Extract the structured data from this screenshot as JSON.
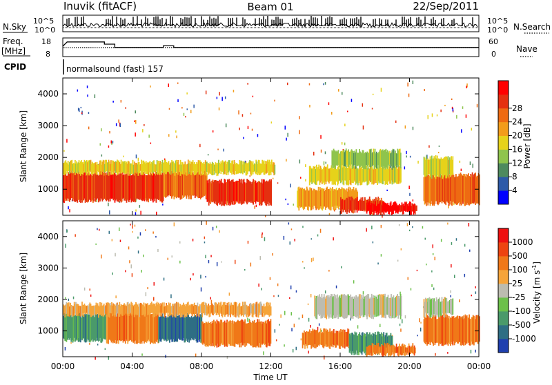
{
  "header": {
    "station": "Inuvik (fitACF)",
    "beam": "Beam 01",
    "date": "22/Sep/2011"
  },
  "noise_panel": {
    "left_label": "N.Sky",
    "right_label": "N.Search",
    "left_ticks": [
      "10^5",
      "10^0"
    ],
    "right_ticks": [
      "10^5",
      "10^0"
    ]
  },
  "freq_panel": {
    "left_label_line1": "Freq.",
    "left_label_line2": "[MHz]",
    "left_ticks": [
      "18",
      "8"
    ],
    "right_ticks": [
      "60",
      "0"
    ],
    "right_label": "Nave",
    "freq_steps": [
      {
        "t": 0.0,
        "f": 13.5
      },
      {
        "t": 0.25,
        "f": 16.6
      },
      {
        "t": 2.4,
        "f": 16.6
      },
      {
        "t": 2.4,
        "f": 15.0
      },
      {
        "t": 3.0,
        "f": 15.0
      },
      {
        "t": 3.0,
        "f": 12.6
      },
      {
        "t": 5.8,
        "f": 12.6
      },
      {
        "t": 5.8,
        "f": 13.8
      },
      {
        "t": 6.4,
        "f": 13.8
      },
      {
        "t": 6.4,
        "f": 12.6
      },
      {
        "t": 24.0,
        "f": 12.6
      }
    ]
  },
  "cpid": {
    "label": "CPID",
    "text": "normalsound (fast) 157"
  },
  "chart_data": [
    {
      "type": "heatmap",
      "name": "power",
      "ylabel": "Slant Range [km]",
      "ylim": [
        180,
        4500
      ],
      "y_ticks": [
        "1000",
        "2000",
        "3000",
        "4000"
      ],
      "xlim": [
        0,
        24
      ],
      "colorbar_label": "Power [dB]",
      "colorbar_ticks": [
        "4",
        "8",
        "12",
        "16",
        "20",
        "24",
        "28"
      ],
      "colors": [
        "#0000ff",
        "#2d5aa8",
        "#4e8a5e",
        "#8fc44c",
        "#e6d21a",
        "#f29c1a",
        "#ee6a12",
        "#e43010",
        "#ff0000"
      ],
      "bands": [
        {
          "t0": 0.0,
          "t1": 5.8,
          "r0": 650,
          "r1": 1500,
          "level": 7
        },
        {
          "t0": 5.8,
          "t1": 8.3,
          "r0": 750,
          "r1": 1550,
          "level": 6
        },
        {
          "t0": 8.3,
          "t1": 12.0,
          "r0": 550,
          "r1": 1250,
          "level": 7
        },
        {
          "t0": 0.0,
          "t1": 12.2,
          "r0": 1500,
          "r1": 1850,
          "level": 4
        },
        {
          "t0": 13.5,
          "t1": 17.0,
          "r0": 400,
          "r1": 1000,
          "level": 5
        },
        {
          "t0": 16.0,
          "t1": 18.5,
          "r0": 300,
          "r1": 700,
          "level": 7
        },
        {
          "t0": 17.5,
          "t1": 20.4,
          "r0": 250,
          "r1": 550,
          "level": 8
        },
        {
          "t0": 14.2,
          "t1": 19.5,
          "r0": 1200,
          "r1": 1700,
          "level": 4
        },
        {
          "t0": 15.5,
          "t1": 19.5,
          "r0": 1700,
          "r1": 2200,
          "level": 3
        },
        {
          "t0": 20.8,
          "t1": 24.0,
          "r0": 550,
          "r1": 1450,
          "level": 6
        },
        {
          "t0": 20.8,
          "t1": 22.5,
          "r0": 1400,
          "r1": 2000,
          "level": 4
        }
      ]
    },
    {
      "type": "heatmap",
      "name": "velocity",
      "ylabel": "Slant Range [km]",
      "ylim": [
        180,
        4500
      ],
      "y_ticks": [
        "1000",
        "2000",
        "3000",
        "4000"
      ],
      "xlabel": "Time UT",
      "x_ticks": [
        "00:00",
        "04:00",
        "08:00",
        "12:00",
        "16:00",
        "20:00",
        "00:00"
      ],
      "xlim": [
        0,
        24
      ],
      "colorbar_label": "Velocity [m s",
      "colorbar_label_sup": "-1",
      "colorbar_label_end": "]",
      "colorbar_ticks": [
        "1000",
        "500",
        "100",
        "25",
        "-25",
        "-100",
        "-500",
        "-1000"
      ],
      "colors": [
        "#1f3fae",
        "#2e6e84",
        "#4a9a6a",
        "#6cc04a",
        "#bcbcb0",
        "#f5a43a",
        "#f07818",
        "#ee4410",
        "#ee1010"
      ],
      "bands": [
        {
          "t0": 0.0,
          "t1": 2.5,
          "r0": 700,
          "r1": 1550,
          "level": 2
        },
        {
          "t0": 2.5,
          "t1": 5.5,
          "r0": 650,
          "r1": 1600,
          "level": 6
        },
        {
          "t0": 5.5,
          "t1": 8.0,
          "r0": 700,
          "r1": 1500,
          "level": 1
        },
        {
          "t0": 8.0,
          "t1": 12.0,
          "r0": 550,
          "r1": 1300,
          "level": 6
        },
        {
          "t0": 0.0,
          "t1": 12.0,
          "r0": 1500,
          "r1": 1850,
          "level": 5
        },
        {
          "t0": 13.8,
          "t1": 16.5,
          "r0": 500,
          "r1": 1000,
          "level": 6
        },
        {
          "t0": 16.5,
          "t1": 19.0,
          "r0": 300,
          "r1": 900,
          "level": 2
        },
        {
          "t0": 17.5,
          "t1": 20.3,
          "r0": 250,
          "r1": 550,
          "level": 6
        },
        {
          "t0": 14.5,
          "t1": 19.5,
          "r0": 1450,
          "r1": 2100,
          "level": 4
        },
        {
          "t0": 20.8,
          "t1": 24.0,
          "r0": 600,
          "r1": 1450,
          "level": 6
        },
        {
          "t0": 20.8,
          "t1": 22.5,
          "r0": 1500,
          "r1": 2000,
          "level": 4
        }
      ]
    }
  ]
}
